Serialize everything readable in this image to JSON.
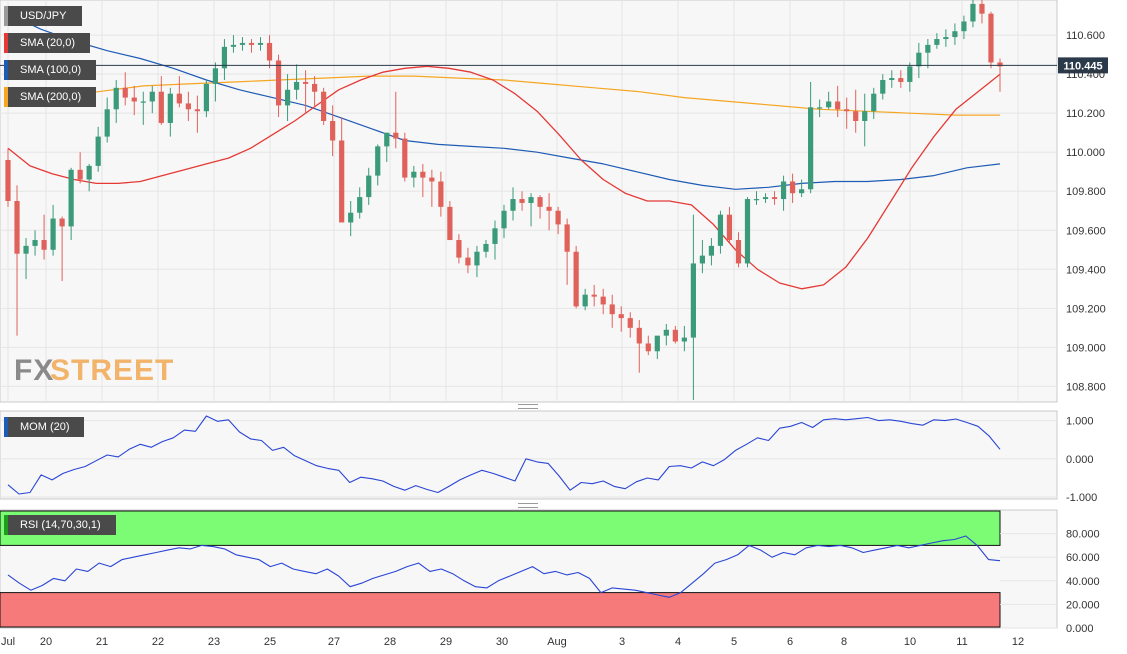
{
  "legends": {
    "main": [
      {
        "label": "USD/JPY",
        "color": "#9a9a9a"
      },
      {
        "label": "SMA (20,0)",
        "color": "#e53935"
      },
      {
        "label": "SMA (100,0)",
        "color": "#1e5bb5"
      },
      {
        "label": "SMA (200,0)",
        "color": "#f5a623"
      }
    ],
    "mom": {
      "label": "MOM (20)",
      "color": "#1e5bb5"
    },
    "rsi": {
      "label": "RSI (14,70,30,1)",
      "color": "#1e9e1e"
    }
  },
  "watermark": {
    "part1": "FX",
    "part2": "STREET"
  },
  "last_price": "110.445",
  "colors": {
    "up": "#3a9a7a",
    "down": "#e0615a",
    "sma20": "#e53935",
    "sma100": "#1e5bb5",
    "sma200": "#f5a623",
    "mom": "#2a45d6",
    "rsi": "#2a45d6",
    "overbought": "#7cfc74",
    "oversold": "#f77a7a"
  },
  "chart_data": [
    {
      "type": "candlestick",
      "title": "USD/JPY",
      "x_tick_labels": [
        "Jul",
        "20",
        "21",
        "22",
        "23",
        "25",
        "27",
        "28",
        "29",
        "30",
        "Aug",
        "3",
        "4",
        "5",
        "6",
        "8",
        "10",
        "11",
        "12"
      ],
      "y_tick_labels": [
        "110.600",
        "110.400",
        "110.200",
        "110.000",
        "109.800",
        "109.600",
        "109.400",
        "109.200",
        "109.000",
        "108.800"
      ],
      "ylim": [
        108.72,
        110.78
      ],
      "grid": true,
      "candles_ohlc": [
        [
          109.96,
          110.02,
          109.72,
          109.75
        ],
        [
          109.75,
          109.83,
          109.06,
          109.48
        ],
        [
          109.48,
          109.56,
          109.35,
          109.52
        ],
        [
          109.52,
          109.6,
          109.47,
          109.55
        ],
        [
          109.55,
          109.68,
          109.45,
          109.5
        ],
        [
          109.5,
          109.73,
          109.47,
          109.66
        ],
        [
          109.66,
          109.67,
          109.34,
          109.62
        ],
        [
          109.62,
          109.92,
          109.55,
          109.91
        ],
        [
          109.91,
          110.0,
          109.84,
          109.86
        ],
        [
          109.86,
          109.94,
          109.8,
          109.93
        ],
        [
          109.93,
          110.13,
          109.9,
          110.08
        ],
        [
          110.08,
          110.28,
          110.05,
          110.22
        ],
        [
          110.22,
          110.37,
          110.15,
          110.33
        ],
        [
          110.33,
          110.41,
          110.24,
          110.28
        ],
        [
          110.28,
          110.34,
          110.19,
          110.26
        ],
        [
          110.26,
          110.31,
          110.14,
          110.26
        ],
        [
          110.26,
          110.34,
          110.2,
          110.31
        ],
        [
          110.31,
          110.39,
          110.14,
          110.15
        ],
        [
          110.15,
          110.33,
          110.08,
          110.3
        ],
        [
          110.3,
          110.39,
          110.23,
          110.25
        ],
        [
          110.25,
          110.31,
          110.16,
          110.22
        ],
        [
          110.22,
          110.29,
          110.1,
          110.21
        ],
        [
          110.21,
          110.37,
          110.18,
          110.35
        ],
        [
          110.35,
          110.46,
          110.26,
          110.43
        ],
        [
          110.43,
          110.58,
          110.37,
          110.54
        ],
        [
          110.54,
          110.6,
          110.51,
          110.55
        ],
        [
          110.55,
          110.59,
          110.52,
          110.56
        ],
        [
          110.56,
          110.58,
          110.51,
          110.55
        ],
        [
          110.55,
          110.59,
          110.52,
          110.56
        ],
        [
          110.56,
          110.6,
          110.43,
          110.47
        ],
        [
          110.47,
          110.5,
          110.18,
          110.24
        ],
        [
          110.24,
          110.4,
          110.16,
          110.32
        ],
        [
          110.32,
          110.45,
          110.27,
          110.36
        ],
        [
          110.36,
          110.42,
          110.2,
          110.35
        ],
        [
          110.35,
          110.39,
          110.23,
          110.31
        ],
        [
          110.31,
          110.33,
          110.14,
          110.16
        ],
        [
          110.16,
          110.24,
          109.98,
          110.06
        ],
        [
          110.06,
          110.18,
          109.78,
          109.64
        ],
        [
          109.64,
          109.75,
          109.57,
          109.69
        ],
        [
          109.69,
          109.82,
          109.66,
          109.77
        ],
        [
          109.77,
          109.92,
          109.73,
          109.88
        ],
        [
          109.88,
          110.04,
          109.83,
          110.03
        ],
        [
          110.03,
          110.1,
          109.95,
          110.1
        ],
        [
          110.1,
          110.31,
          110.02,
          110.07
        ],
        [
          110.07,
          110.1,
          109.85,
          109.87
        ],
        [
          109.87,
          109.93,
          109.82,
          109.9
        ],
        [
          109.9,
          109.94,
          109.77,
          109.87
        ],
        [
          109.87,
          109.91,
          109.72,
          109.85
        ],
        [
          109.85,
          109.9,
          109.67,
          109.72
        ],
        [
          109.72,
          109.75,
          109.56,
          109.55
        ],
        [
          109.55,
          109.58,
          109.43,
          109.46
        ],
        [
          109.46,
          109.51,
          109.38,
          109.42
        ],
        [
          109.42,
          109.52,
          109.36,
          109.49
        ],
        [
          109.49,
          109.55,
          109.46,
          109.53
        ],
        [
          109.53,
          109.65,
          109.45,
          109.61
        ],
        [
          109.61,
          109.73,
          109.56,
          109.7
        ],
        [
          109.7,
          109.82,
          109.65,
          109.76
        ],
        [
          109.76,
          109.8,
          109.7,
          109.74
        ],
        [
          109.74,
          109.79,
          109.62,
          109.77
        ],
        [
          109.77,
          109.78,
          109.66,
          109.72
        ],
        [
          109.72,
          109.79,
          109.6,
          109.7
        ],
        [
          109.7,
          109.72,
          109.58,
          109.63
        ],
        [
          109.63,
          109.66,
          109.32,
          109.49
        ],
        [
          109.49,
          109.52,
          109.2,
          109.21
        ],
        [
          109.21,
          109.3,
          109.19,
          109.27
        ],
        [
          109.27,
          109.32,
          109.21,
          109.26
        ],
        [
          109.26,
          109.3,
          109.17,
          109.22
        ],
        [
          109.22,
          109.27,
          109.1,
          109.17
        ],
        [
          109.17,
          109.21,
          109.08,
          109.15
        ],
        [
          109.15,
          109.18,
          109.05,
          109.1
        ],
        [
          109.1,
          109.14,
          108.87,
          109.02
        ],
        [
          109.02,
          109.06,
          108.96,
          108.98
        ],
        [
          108.98,
          109.05,
          108.94,
          109.06
        ],
        [
          109.06,
          109.12,
          109.01,
          109.09
        ],
        [
          109.09,
          109.11,
          109.02,
          109.03
        ],
        [
          109.03,
          109.11,
          108.98,
          109.05
        ],
        [
          109.05,
          109.68,
          108.73,
          109.43
        ],
        [
          109.43,
          109.55,
          109.38,
          109.47
        ],
        [
          109.47,
          109.56,
          109.42,
          109.52
        ],
        [
          109.52,
          109.7,
          109.48,
          109.68
        ],
        [
          109.68,
          109.72,
          109.54,
          109.55
        ],
        [
          109.55,
          109.59,
          109.41,
          109.43
        ],
        [
          109.43,
          109.77,
          109.41,
          109.76
        ],
        [
          109.76,
          109.8,
          109.73,
          109.76
        ],
        [
          109.76,
          109.79,
          109.74,
          109.77
        ],
        [
          109.77,
          109.8,
          109.73,
          109.76
        ],
        [
          109.76,
          109.88,
          109.7,
          109.85
        ],
        [
          109.85,
          109.89,
          109.74,
          109.79
        ],
        [
          109.79,
          109.86,
          109.77,
          109.81
        ],
        [
          109.81,
          110.36,
          109.79,
          110.23
        ],
        [
          110.23,
          110.27,
          110.18,
          110.23
        ],
        [
          110.23,
          110.31,
          110.22,
          110.26
        ],
        [
          110.26,
          110.34,
          110.18,
          110.22
        ],
        [
          110.22,
          110.28,
          110.12,
          110.21
        ],
        [
          110.21,
          110.32,
          110.1,
          110.16
        ],
        [
          110.16,
          110.3,
          110.03,
          110.21
        ],
        [
          110.21,
          110.33,
          110.17,
          110.3
        ],
        [
          110.3,
          110.4,
          110.27,
          110.37
        ],
        [
          110.37,
          110.42,
          110.33,
          110.38
        ],
        [
          110.38,
          110.42,
          110.33,
          110.36
        ],
        [
          110.36,
          110.46,
          110.31,
          110.44
        ],
        [
          110.44,
          110.56,
          110.38,
          110.51
        ],
        [
          110.51,
          110.58,
          110.43,
          110.55
        ],
        [
          110.55,
          110.61,
          110.53,
          110.58
        ],
        [
          110.58,
          110.63,
          110.54,
          110.59
        ],
        [
          110.59,
          110.66,
          110.55,
          110.62
        ],
        [
          110.62,
          110.7,
          110.58,
          110.67
        ],
        [
          110.67,
          110.78,
          110.64,
          110.76
        ],
        [
          110.76,
          110.78,
          110.66,
          110.71
        ],
        [
          110.71,
          110.72,
          110.43,
          110.46
        ],
        [
          110.46,
          110.48,
          110.31,
          110.44
        ]
      ],
      "sma20": [
        110.02,
        109.93,
        109.89,
        109.86,
        109.84,
        109.84,
        109.85,
        109.88,
        109.91,
        109.94,
        109.97,
        110.02,
        110.09,
        110.16,
        110.24,
        110.32,
        110.37,
        110.41,
        110.43,
        110.44,
        110.43,
        110.41,
        110.37,
        110.3,
        110.21,
        110.09,
        109.96,
        109.86,
        109.79,
        109.75,
        109.75,
        109.73,
        109.63,
        109.5,
        109.4,
        109.33,
        109.3,
        109.32,
        109.41,
        109.56,
        109.74,
        109.92,
        110.08,
        110.22,
        110.31,
        110.4
      ],
      "sma100": [
        110.71,
        110.63,
        110.57,
        110.52,
        110.48,
        110.43,
        110.37,
        110.32,
        110.28,
        110.24,
        110.18,
        110.12,
        110.06,
        110.04,
        110.03,
        110.02,
        110.0,
        109.97,
        109.94,
        109.9,
        109.86,
        109.83,
        109.81,
        109.82,
        109.84,
        109.85,
        109.85,
        109.86,
        109.88,
        109.92,
        109.94
      ],
      "sma200": [
        110.26,
        110.29,
        110.31,
        110.34,
        110.35,
        110.36,
        110.37,
        110.38,
        110.39,
        110.39,
        110.38,
        110.37,
        110.35,
        110.33,
        110.31,
        110.28,
        110.26,
        110.24,
        110.22,
        110.21,
        110.2,
        110.19,
        110.19
      ],
      "last_value": 110.445
    },
    {
      "type": "line",
      "title": "MOM (20)",
      "y_tick_labels": [
        "1.000",
        "0.000",
        "-1.000"
      ],
      "ylim": [
        -1.05,
        1.25
      ],
      "values": [
        -0.68,
        -0.92,
        -0.88,
        -0.42,
        -0.55,
        -0.38,
        -0.28,
        -0.2,
        -0.05,
        0.1,
        0.05,
        0.25,
        0.38,
        0.3,
        0.45,
        0.55,
        0.75,
        0.72,
        1.12,
        0.98,
        1.02,
        0.7,
        0.52,
        0.48,
        0.22,
        0.3,
        0.08,
        -0.05,
        -0.18,
        -0.25,
        -0.3,
        -0.62,
        -0.48,
        -0.52,
        -0.58,
        -0.72,
        -0.82,
        -0.7,
        -0.8,
        -0.88,
        -0.72,
        -0.55,
        -0.42,
        -0.3,
        -0.38,
        -0.48,
        -0.58,
        0.0,
        -0.08,
        -0.12,
        -0.45,
        -0.82,
        -0.62,
        -0.65,
        -0.58,
        -0.72,
        -0.78,
        -0.6,
        -0.5,
        -0.55,
        -0.2,
        -0.18,
        -0.24,
        -0.08,
        -0.18,
        -0.02,
        0.22,
        0.38,
        0.55,
        0.48,
        0.8,
        0.85,
        0.95,
        0.82,
        1.02,
        1.05,
        1.02,
        1.05,
        1.08,
        1.0,
        1.02,
        0.98,
        0.92,
        0.88,
        1.02,
        1.0,
        1.04,
        0.95,
        0.85,
        0.6,
        0.25
      ]
    },
    {
      "type": "line",
      "title": "RSI (14,70,30,1)",
      "y_tick_labels": [
        "80.000",
        "60.000",
        "40.000",
        "20.000",
        "0.000"
      ],
      "ylim": [
        0,
        100
      ],
      "bands": {
        "overbought": 70,
        "oversold": 30
      },
      "values": [
        45,
        38,
        32,
        36,
        42,
        40,
        50,
        48,
        55,
        52,
        58,
        60,
        62,
        64,
        66,
        68,
        67,
        70,
        69,
        67,
        62,
        60,
        58,
        52,
        55,
        50,
        48,
        46,
        50,
        44,
        35,
        38,
        42,
        45,
        48,
        52,
        55,
        48,
        50,
        46,
        40,
        35,
        34,
        40,
        44,
        48,
        52,
        46,
        48,
        45,
        47,
        42,
        30,
        34,
        33,
        32,
        30,
        28,
        26,
        30,
        38,
        46,
        55,
        58,
        62,
        70,
        66,
        60,
        64,
        62,
        68,
        70,
        69,
        70,
        68,
        64,
        66,
        68,
        70,
        68,
        70,
        72,
        74,
        75,
        78,
        70,
        58,
        57
      ]
    }
  ]
}
